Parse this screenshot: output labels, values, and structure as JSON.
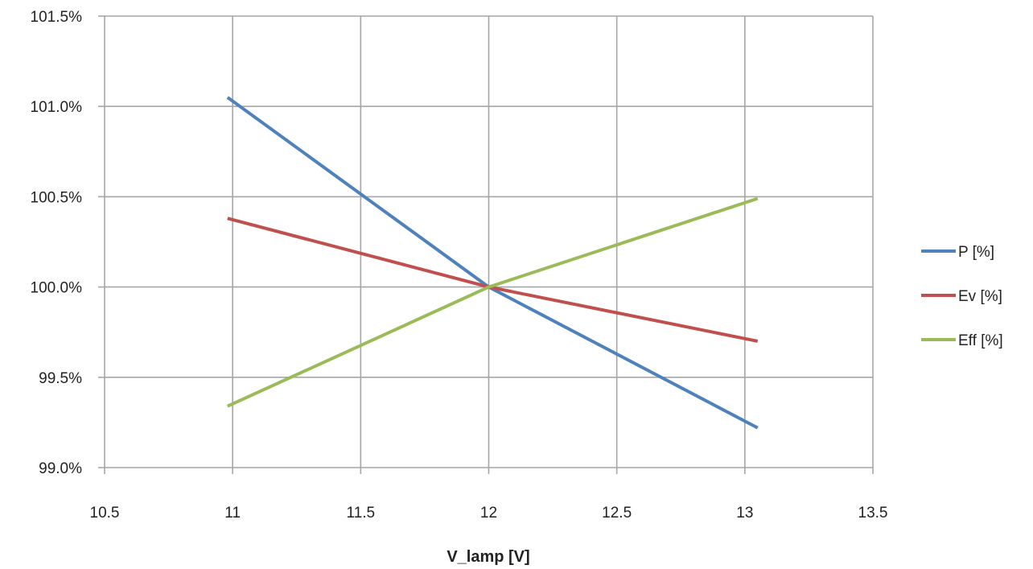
{
  "chart_data": {
    "type": "line",
    "title": "",
    "xlabel": "V_lamp [V]",
    "ylabel": "",
    "xlim": [
      10.5,
      13.5
    ],
    "ylim": [
      99.0,
      101.5
    ],
    "x_ticks": [
      10.5,
      11,
      11.5,
      12,
      12.5,
      13,
      13.5
    ],
    "x_tick_labels": [
      "10.5",
      "11",
      "11.5",
      "12",
      "12.5",
      "13",
      "13.5"
    ],
    "y_ticks": [
      99.0,
      99.5,
      100.0,
      100.5,
      101.0,
      101.5
    ],
    "y_tick_labels": [
      "99.0%",
      "99.5%",
      "100.0%",
      "100.5%",
      "101.0%",
      "101.5%"
    ],
    "grid": true,
    "legend_position": "right",
    "series": [
      {
        "name": "P [%]",
        "color": "#4F81BD",
        "x": [
          10.98,
          12,
          13.05
        ],
        "values": [
          101.05,
          100.0,
          99.22
        ]
      },
      {
        "name": "Ev [%]",
        "color": "#C0504D",
        "x": [
          10.98,
          12,
          13.05
        ],
        "values": [
          100.38,
          100.0,
          99.7
        ]
      },
      {
        "name": "Eff [%]",
        "color": "#9BBB59",
        "x": [
          10.98,
          12,
          13.05
        ],
        "values": [
          99.34,
          100.0,
          100.49
        ]
      }
    ]
  }
}
